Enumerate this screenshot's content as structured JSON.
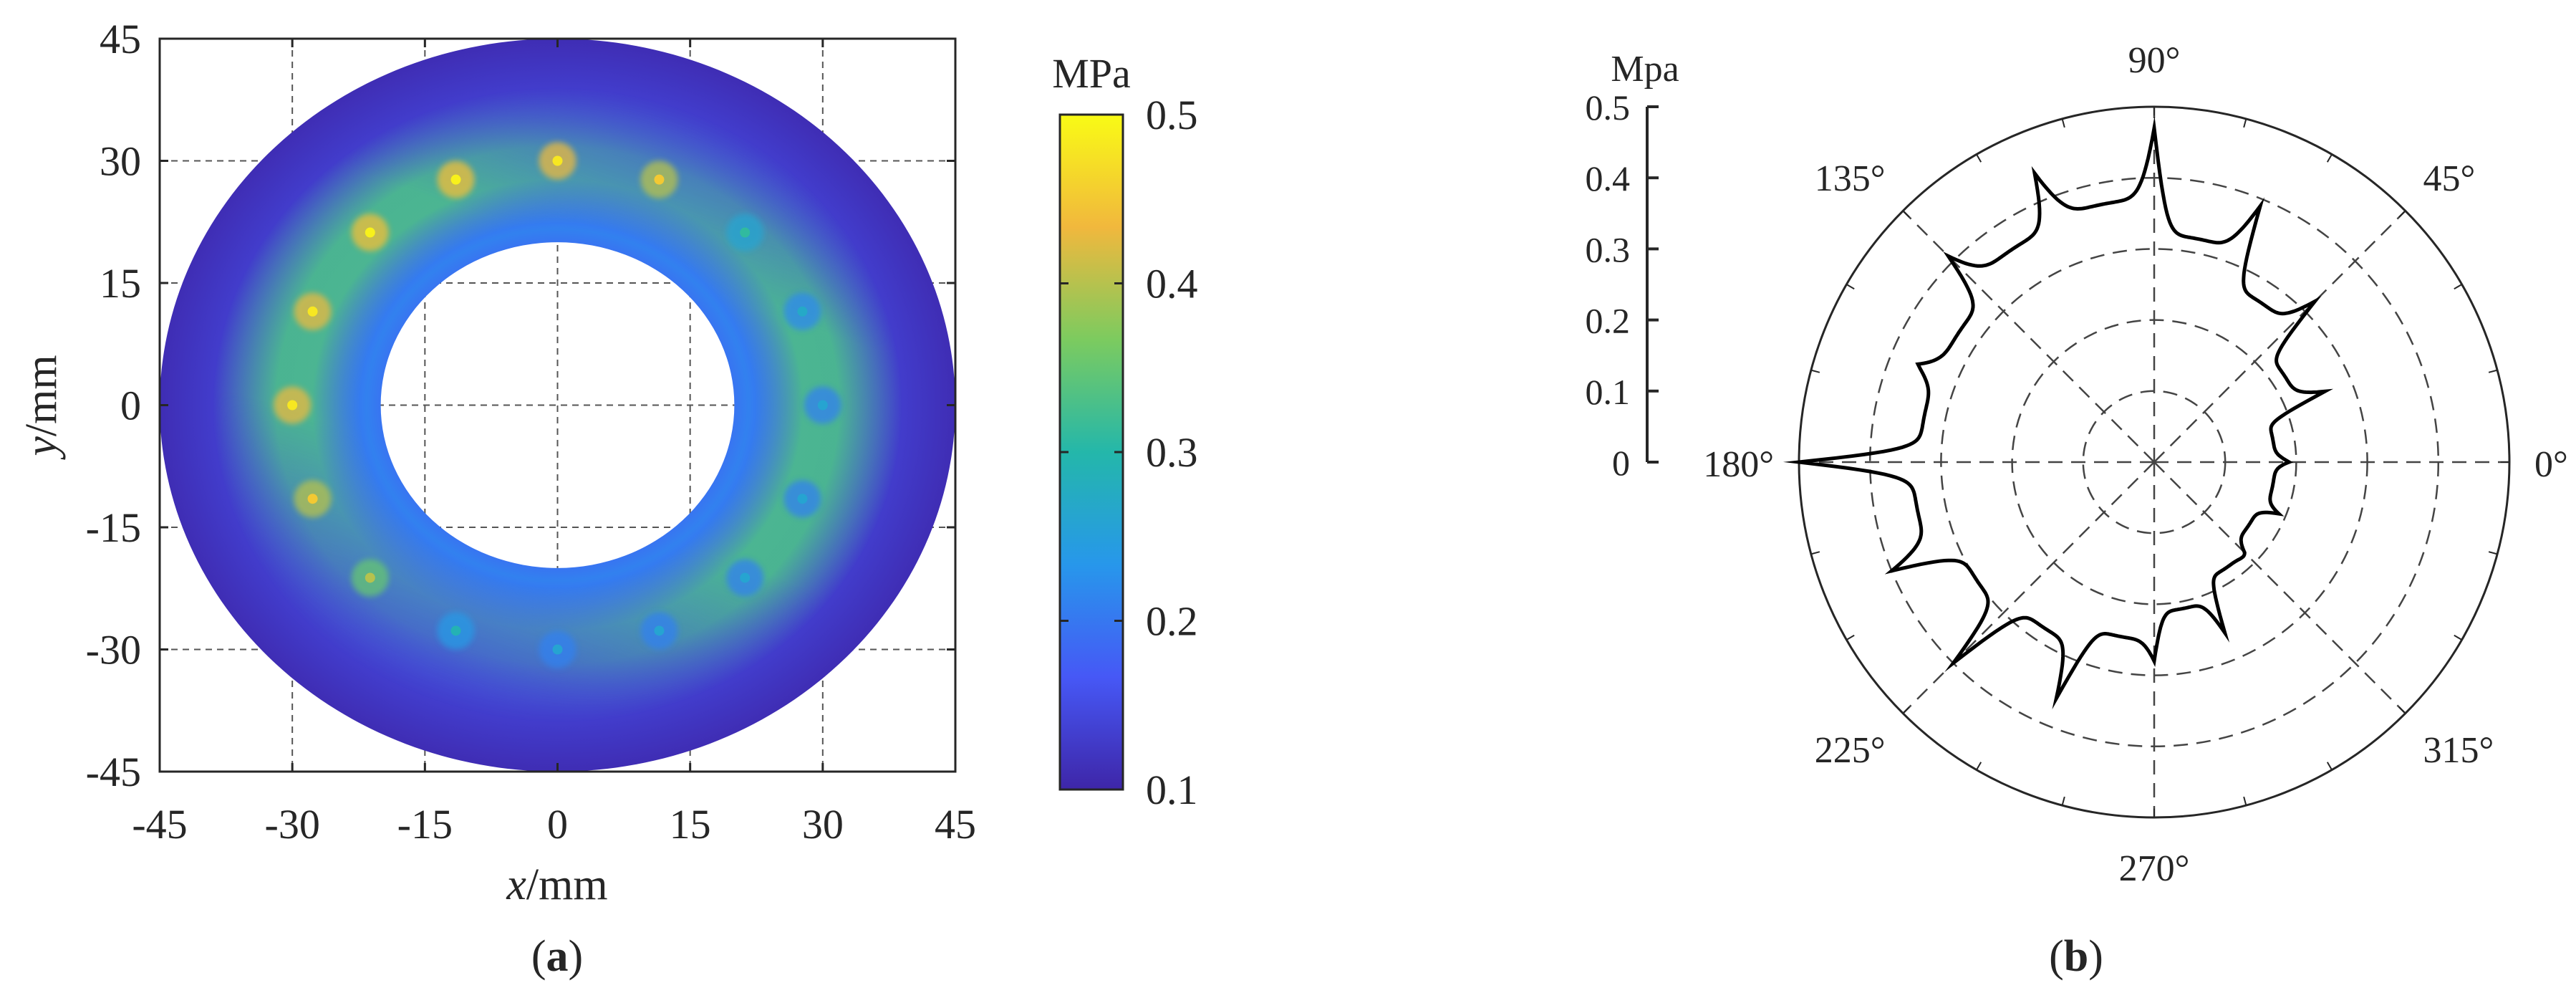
{
  "chart_data": [
    {
      "type": "heatmap",
      "panel_label": "a",
      "xlabel_var": "x",
      "xlabel_unit": "/mm",
      "ylabel_var": "y",
      "ylabel_unit": "/mm",
      "xlim": [
        -45,
        45
      ],
      "ylim": [
        -45,
        45
      ],
      "xticks": [
        "-45",
        "-30",
        "-15",
        "0",
        "15",
        "30",
        "45"
      ],
      "yticks": [
        "45",
        "30",
        "15",
        "0",
        "-15",
        "-30",
        "-45"
      ],
      "tick_values": [
        -45,
        -30,
        -15,
        0,
        15,
        30,
        45
      ],
      "grid": true,
      "domain": {
        "shape": "annulus",
        "inner_radius": 20,
        "outer_radius": 45,
        "unit": "mm"
      },
      "colorbar": {
        "title": "MPa",
        "colormap": "parula",
        "range": [
          0.1,
          0.5
        ],
        "ticks": [
          "0.5",
          "0.4",
          "0.3",
          "0.2",
          "0.1"
        ],
        "tick_values": [
          0.5,
          0.4,
          0.3,
          0.2,
          0.1
        ],
        "colors": [
          "#3e26a8",
          "#4658f6",
          "#2797eb",
          "#24b7aa",
          "#7ccb5f",
          "#f1b83d",
          "#f9fb15"
        ]
      },
      "background_value": 0.13,
      "ring_band": {
        "radius": 30,
        "angle_from_deg": 70,
        "angle_to_deg": 180,
        "peak_value": 0.33,
        "unit": "mm"
      },
      "hotspots": [
        {
          "x": 0,
          "y": 30,
          "value": 0.43
        },
        {
          "x": 11.5,
          "y": 27.7,
          "value": 0.4
        },
        {
          "x": 21.2,
          "y": 21.2,
          "value": 0.26
        },
        {
          "x": 27.7,
          "y": 11.5,
          "value": 0.22
        },
        {
          "x": 30,
          "y": 0,
          "value": 0.21
        },
        {
          "x": 27.7,
          "y": -11.5,
          "value": 0.21
        },
        {
          "x": 21.2,
          "y": -21.2,
          "value": 0.21
        },
        {
          "x": 11.5,
          "y": -27.7,
          "value": 0.21
        },
        {
          "x": 0,
          "y": -30,
          "value": 0.21
        },
        {
          "x": -11.5,
          "y": -27.7,
          "value": 0.24
        },
        {
          "x": -21.2,
          "y": -21.2,
          "value": 0.35
        },
        {
          "x": -27.7,
          "y": -11.5,
          "value": 0.4
        },
        {
          "x": -30,
          "y": 0,
          "value": 0.43
        },
        {
          "x": -27.7,
          "y": 11.5,
          "value": 0.43
        },
        {
          "x": -21.2,
          "y": 21.2,
          "value": 0.44
        },
        {
          "x": -11.5,
          "y": 27.7,
          "value": 0.44
        }
      ]
    },
    {
      "type": "line",
      "subtype": "polar",
      "panel_label": "b",
      "r_unit": "Mpa",
      "rlim": [
        0,
        0.5
      ],
      "rticks": [
        "0",
        "0.1",
        "0.2",
        "0.3",
        "0.4",
        "0.5"
      ],
      "rtick_values": [
        0,
        0.1,
        0.2,
        0.3,
        0.4,
        0.5
      ],
      "rgrid": [
        0.1,
        0.2,
        0.3,
        0.4
      ],
      "theta_labels": [
        "0°",
        "45°",
        "90°",
        "135°",
        "180°",
        "225°",
        "270°",
        "315°"
      ],
      "theta_label_values": [
        0,
        45,
        90,
        135,
        180,
        225,
        270,
        315
      ],
      "series": [
        {
          "peak_angles_deg": [
            0,
            22.5,
            45,
            67.5,
            90,
            112.5,
            135,
            157.5,
            180,
            202.5,
            225,
            247.5,
            270,
            292.5,
            315,
            337.5
          ],
          "peak_values": [
            0.19,
            0.26,
            0.32,
            0.39,
            0.47,
            0.44,
            0.41,
            0.36,
            0.5,
            0.4,
            0.4,
            0.36,
            0.28,
            0.26,
            0.18,
            0.19
          ],
          "trough_values": [
            0.17,
            0.22,
            0.27,
            0.32,
            0.37,
            0.36,
            0.33,
            0.33,
            0.34,
            0.3,
            0.28,
            0.25,
            0.21,
            0.18,
            0.16,
            0.17
          ]
        }
      ]
    }
  ]
}
